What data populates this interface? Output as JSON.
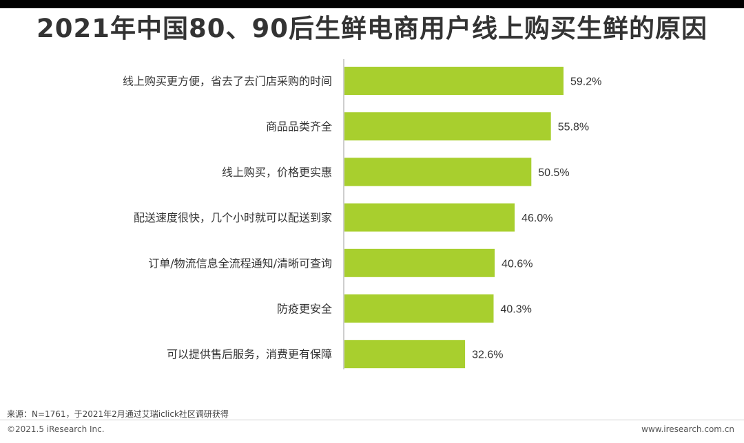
{
  "header": {
    "title": "2021年中国80、90后生鲜电商用户线上购买生鲜的原因"
  },
  "chart_data": {
    "type": "bar",
    "orientation": "horizontal",
    "categories": [
      "线上购买更方便，省去了去门店采购的时间",
      "商品品类齐全",
      "线上购买，价格更实惠",
      "配送速度很快，几个小时就可以配送到家",
      "订单/物流信息全流程通知/清晰可查询",
      "防疫更安全",
      "可以提供售后服务，消费更有保障"
    ],
    "values": [
      59.2,
      55.8,
      50.5,
      46.0,
      40.6,
      40.3,
      32.6
    ],
    "value_labels": [
      "59.2%",
      "55.8%",
      "50.5%",
      "46.0%",
      "40.6%",
      "40.3%",
      "32.6%"
    ],
    "unit": "%",
    "xlim": [
      0,
      59.2
    ],
    "grid": false,
    "legend": "none",
    "bar_color": "#a8cf2e"
  },
  "footer": {
    "source": "来源：N=1761，于2021年2月通过艾瑞iclick社区调研获得",
    "copyright": "©2021.5 iResearch Inc.",
    "site": "www.iresearch.com.cn"
  }
}
